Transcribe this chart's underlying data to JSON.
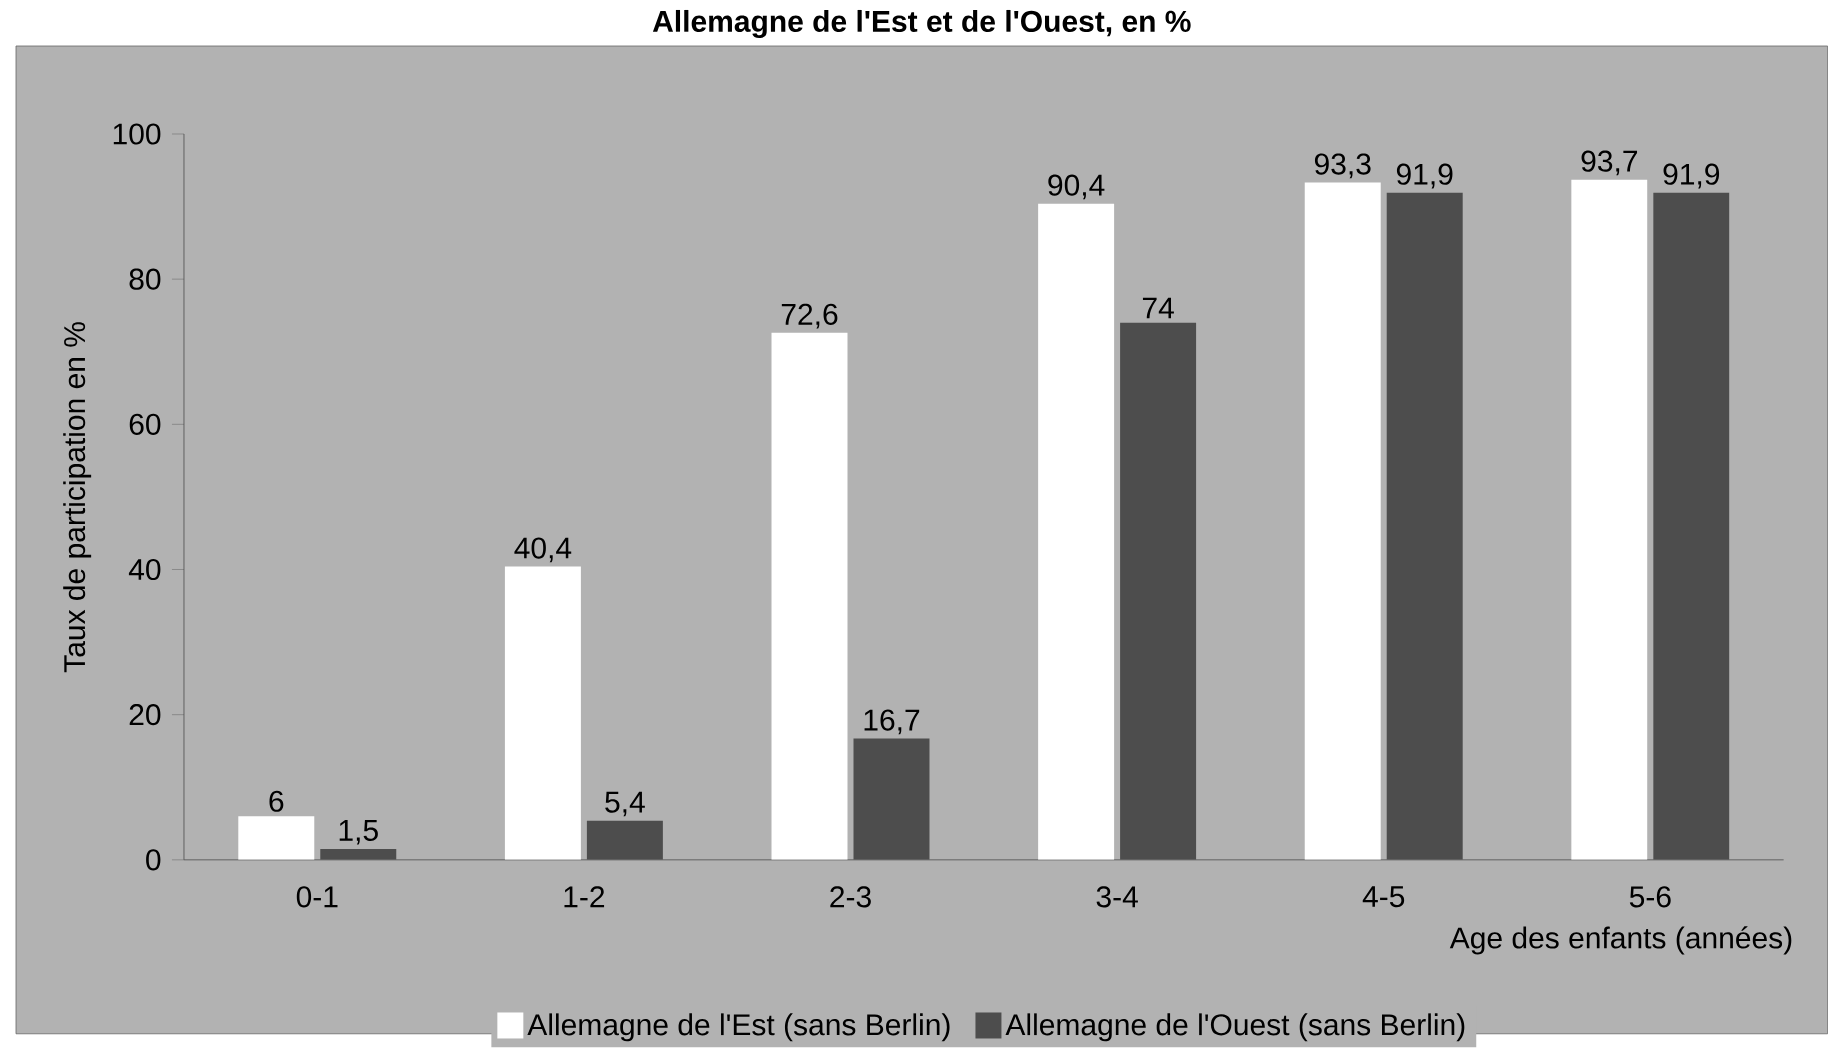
{
  "chart_data": {
    "type": "bar",
    "title": "Allemagne de l'Est et de l'Ouest, en %",
    "xlabel": "Age des enfants (années)",
    "ylabel": "Taux de participation en %",
    "categories": [
      "0-1",
      "1-2",
      "2-3",
      "3-4",
      "4-5",
      "5-6"
    ],
    "series": [
      {
        "name": "Allemagne de l'Est (sans Berlin)",
        "color": "#ffffff",
        "values": [
          6,
          40.4,
          72.6,
          90.4,
          93.3,
          93.7
        ],
        "value_labels": [
          "6",
          "40,4",
          "72,6",
          "90,4",
          "93,3",
          "93,7"
        ]
      },
      {
        "name": "Allemagne de l'Ouest (sans Berlin)",
        "color": "#4d4d4d",
        "values": [
          1.5,
          5.4,
          16.7,
          74,
          91.9,
          91.9
        ],
        "value_labels": [
          "1,5",
          "5,4",
          "16,7",
          "74",
          "91,9",
          "91,9"
        ]
      }
    ],
    "ylim": [
      0,
      100
    ],
    "yticks": [
      0,
      20,
      40,
      60,
      80,
      100
    ],
    "grid": false,
    "legend": "bottom"
  }
}
